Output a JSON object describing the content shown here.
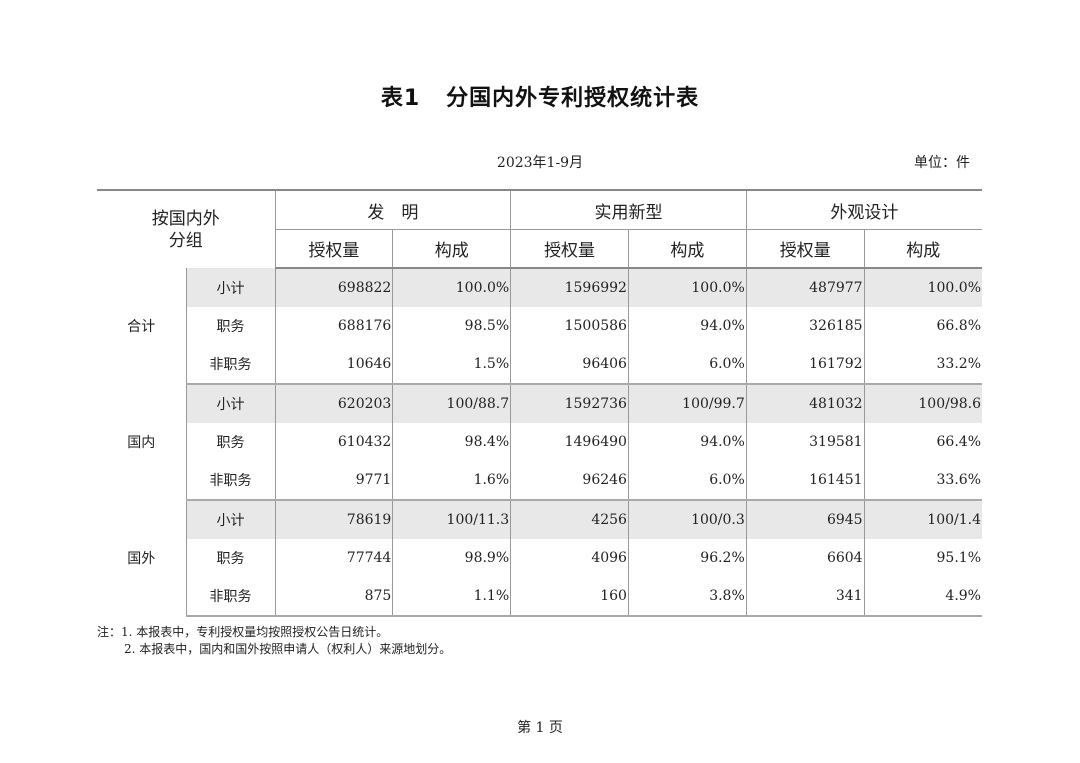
{
  "title": {
    "label": "表1",
    "text": "分国内外专利授权统计表"
  },
  "period": "2023年1-9月",
  "unit": "单位：件",
  "header": {
    "corner": [
      "按国内外",
      "分组"
    ],
    "groups": [
      "发　明",
      "实用新型",
      "外观设计"
    ],
    "subcols": [
      "授权量",
      "构成",
      "授权量",
      "构成",
      "授权量",
      "构成"
    ]
  },
  "sections": [
    {
      "name": "合计",
      "rows": [
        {
          "label": "小计",
          "values": [
            "698822",
            "100.0%",
            "1596992",
            "100.0%",
            "487977",
            "100.0%"
          ]
        },
        {
          "label": "职务",
          "values": [
            "688176",
            "98.5%",
            "1500586",
            "94.0%",
            "326185",
            "66.8%"
          ]
        },
        {
          "label": "非职务",
          "values": [
            "10646",
            "1.5%",
            "96406",
            "6.0%",
            "161792",
            "33.2%"
          ]
        }
      ]
    },
    {
      "name": "国内",
      "rows": [
        {
          "label": "小计",
          "values": [
            "620203",
            "100/88.7",
            "1592736",
            "100/99.7",
            "481032",
            "100/98.6"
          ]
        },
        {
          "label": "职务",
          "values": [
            "610432",
            "98.4%",
            "1496490",
            "94.0%",
            "319581",
            "66.4%"
          ]
        },
        {
          "label": "非职务",
          "values": [
            "9771",
            "1.6%",
            "96246",
            "6.0%",
            "161451",
            "33.6%"
          ]
        }
      ]
    },
    {
      "name": "国外",
      "rows": [
        {
          "label": "小计",
          "values": [
            "78619",
            "100/11.3",
            "4256",
            "100/0.3",
            "6945",
            "100/1.4"
          ]
        },
        {
          "label": "职务",
          "values": [
            "77744",
            "98.9%",
            "4096",
            "96.2%",
            "6604",
            "95.1%"
          ]
        },
        {
          "label": "非职务",
          "values": [
            "875",
            "1.1%",
            "160",
            "3.8%",
            "341",
            "4.9%"
          ]
        }
      ]
    }
  ],
  "notes": [
    "注：1. 本报表中，专利授权量均按照授权公告日统计。",
    "2. 本报表中，国内和国外按照申请人（权利人）来源地划分。"
  ],
  "footer": "第 1 页"
}
